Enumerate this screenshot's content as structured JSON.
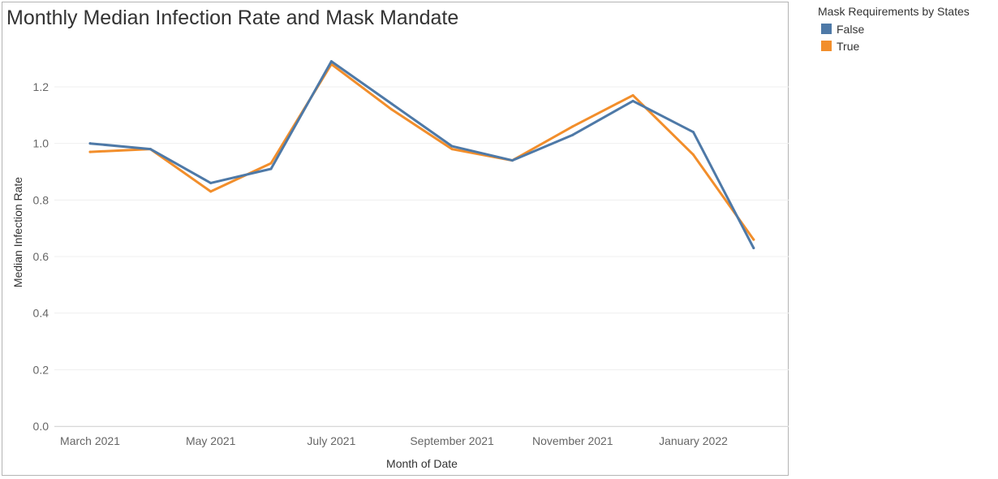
{
  "chart_data": {
    "type": "line",
    "title": "Monthly Median Infection Rate and Mask Mandate",
    "xlabel": "Month of Date",
    "ylabel": "Median Infection Rate",
    "x": [
      "2021-03",
      "2021-04",
      "2021-05",
      "2021-06",
      "2021-07",
      "2021-08",
      "2021-09",
      "2021-10",
      "2021-11",
      "2021-12",
      "2022-01",
      "2022-02"
    ],
    "x_tick_labels": [
      "March 2021",
      "May 2021",
      "July 2021",
      "September 2021",
      "November 2021",
      "January 2022"
    ],
    "y_ticks": [
      "0.0",
      "0.2",
      "0.4",
      "0.6",
      "0.8",
      "1.0",
      "1.2"
    ],
    "ylim": [
      0,
      1.32
    ],
    "grid": true,
    "legend": {
      "title": "Mask Requirements by States",
      "position": "top-right"
    },
    "series": [
      {
        "name": "False",
        "color": "#4e79a7",
        "values": [
          1.0,
          0.98,
          0.86,
          0.91,
          1.29,
          1.14,
          0.99,
          0.94,
          1.03,
          1.15,
          1.04,
          0.63
        ]
      },
      {
        "name": "True",
        "color": "#f28e2b",
        "values": [
          0.97,
          0.98,
          0.83,
          0.93,
          1.28,
          1.12,
          0.98,
          0.94,
          1.06,
          1.17,
          0.96,
          0.66
        ]
      }
    ]
  }
}
